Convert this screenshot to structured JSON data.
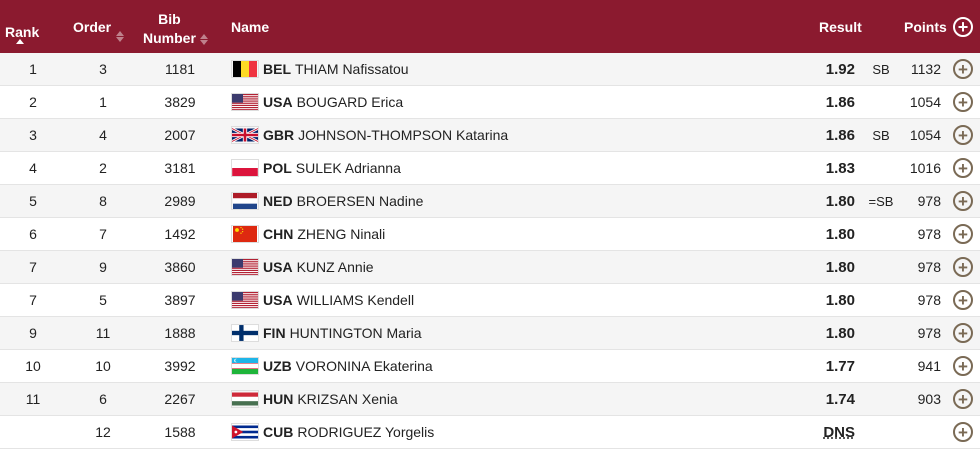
{
  "header": {
    "rank": "Rank",
    "order": "Order",
    "bib_line1": "Bib",
    "bib_line2": "Number",
    "name": "Name",
    "result": "Result",
    "points": "Points"
  },
  "rows": [
    {
      "rank": "1",
      "order": "3",
      "bib": "1181",
      "noc": "BEL",
      "athlete": "THIAM Nafissatou",
      "result": "1.92",
      "note": "SB",
      "points": "1132",
      "flag": "belgium-flag"
    },
    {
      "rank": "2",
      "order": "1",
      "bib": "3829",
      "noc": "USA",
      "athlete": "BOUGARD Erica",
      "result": "1.86",
      "note": "",
      "points": "1054",
      "flag": "usa-flag"
    },
    {
      "rank": "3",
      "order": "4",
      "bib": "2007",
      "noc": "GBR",
      "athlete": "JOHNSON-THOMPSON Katarina",
      "result": "1.86",
      "note": "SB",
      "points": "1054",
      "flag": "great-britain-flag"
    },
    {
      "rank": "4",
      "order": "2",
      "bib": "3181",
      "noc": "POL",
      "athlete": "SULEK Adrianna",
      "result": "1.83",
      "note": "",
      "points": "1016",
      "flag": "poland-flag"
    },
    {
      "rank": "5",
      "order": "8",
      "bib": "2989",
      "noc": "NED",
      "athlete": "BROERSEN Nadine",
      "result": "1.80",
      "note": "=SB",
      "points": "978",
      "flag": "netherlands-flag"
    },
    {
      "rank": "6",
      "order": "7",
      "bib": "1492",
      "noc": "CHN",
      "athlete": "ZHENG Ninali",
      "result": "1.80",
      "note": "",
      "points": "978",
      "flag": "china-flag"
    },
    {
      "rank": "7",
      "order": "9",
      "bib": "3860",
      "noc": "USA",
      "athlete": "KUNZ Annie",
      "result": "1.80",
      "note": "",
      "points": "978",
      "flag": "usa-flag"
    },
    {
      "rank": "7",
      "order": "5",
      "bib": "3897",
      "noc": "USA",
      "athlete": "WILLIAMS Kendell",
      "result": "1.80",
      "note": "",
      "points": "978",
      "flag": "usa-flag"
    },
    {
      "rank": "9",
      "order": "11",
      "bib": "1888",
      "noc": "FIN",
      "athlete": "HUNTINGTON Maria",
      "result": "1.80",
      "note": "",
      "points": "978",
      "flag": "finland-flag"
    },
    {
      "rank": "10",
      "order": "10",
      "bib": "3992",
      "noc": "UZB",
      "athlete": "VORONINA Ekaterina",
      "result": "1.77",
      "note": "",
      "points": "941",
      "flag": "uzbekistan-flag"
    },
    {
      "rank": "11",
      "order": "6",
      "bib": "2267",
      "noc": "HUN",
      "athlete": "KRIZSAN Xenia",
      "result": "1.74",
      "note": "",
      "points": "903",
      "flag": "hungary-flag"
    },
    {
      "rank": "",
      "order": "12",
      "bib": "1588",
      "noc": "CUB",
      "athlete": "RODRIGUEZ Yorgelis",
      "result": "DNS",
      "note": "",
      "points": "",
      "flag": "cuba-flag"
    }
  ],
  "colors": {
    "header_bg": "#8b1a2f",
    "plus_icon": "#7a6a55"
  }
}
